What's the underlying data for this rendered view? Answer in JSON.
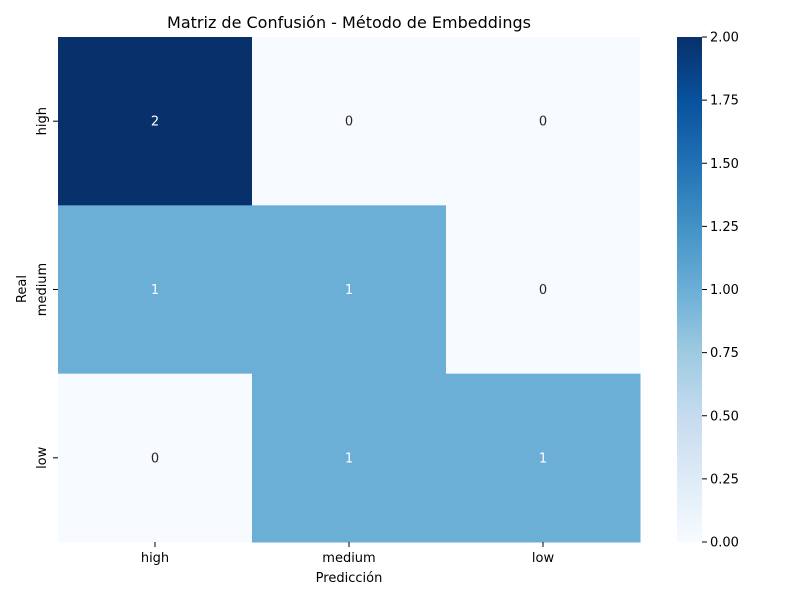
{
  "chart_data": {
    "type": "heatmap",
    "title": "Matriz de Confusión - Método de Embeddings",
    "xlabel": "Predicción",
    "ylabel": "Real",
    "x_categories": [
      "high",
      "medium",
      "low"
    ],
    "y_categories": [
      "high",
      "medium",
      "low"
    ],
    "matrix": [
      [
        2,
        0,
        0
      ],
      [
        1,
        1,
        0
      ],
      [
        0,
        1,
        1
      ]
    ],
    "colorbar": {
      "min": 0.0,
      "max": 2.0,
      "ticks": [
        "0.00",
        "0.25",
        "0.50",
        "0.75",
        "1.00",
        "1.25",
        "1.50",
        "1.75",
        "2.00"
      ],
      "colormap": "Blues"
    },
    "colors": {
      "low_value": "#f7fbff",
      "mid_value": "#6baed6",
      "high_value": "#08306b",
      "text_on_dark": "#ffffff",
      "text_on_light": "#262626"
    }
  }
}
